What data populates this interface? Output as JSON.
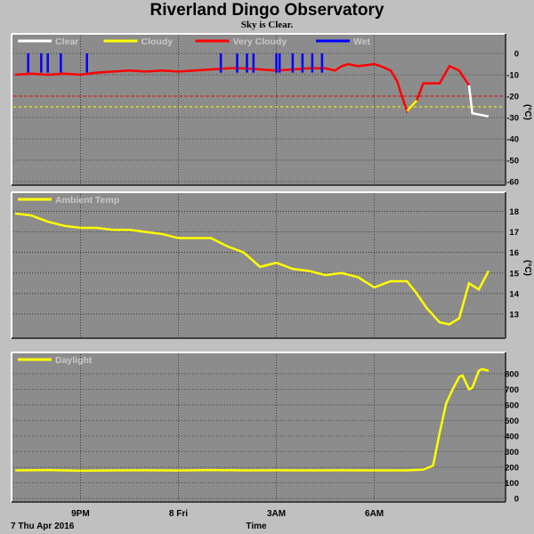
{
  "header": {
    "title": "Riverland Dingo Observatory",
    "subtitle": "Sky is Clear."
  },
  "colors": {
    "panel": "#8c8c8c",
    "grid": "#000000",
    "clear": "#ffffff",
    "cloudy": "#ffff00",
    "very_cloudy": "#ff0000",
    "wet": "#0000ff"
  },
  "x_axis": {
    "ticks": [
      "9PM",
      "8 Fri",
      "3AM",
      "6AM"
    ],
    "label": "Time",
    "date_label": "7 Thu Apr 2016"
  },
  "chart_data": [
    {
      "type": "line",
      "name": "sky-temperature",
      "unit": "(°C)",
      "ylim": [
        -60,
        5
      ],
      "yticks": [
        0,
        -10,
        -20,
        -30,
        -40,
        -50,
        -60
      ],
      "legend": [
        {
          "name": "Clear",
          "color": "#ffffff"
        },
        {
          "name": "Cloudy",
          "color": "#ffff00"
        },
        {
          "name": "Very Cloudy",
          "color": "#ff0000"
        },
        {
          "name": "Wet",
          "color": "#0000ff"
        }
      ],
      "thresholds": [
        {
          "value": -20,
          "color": "#ff0000"
        },
        {
          "value": -25,
          "color": "#ffff00"
        }
      ],
      "x_hours": [
        0,
        0.5,
        1.0,
        1.5,
        2.0,
        2.5,
        3.0,
        3.5,
        4.0,
        4.5,
        5.0,
        5.5,
        6.0,
        6.5,
        7.0,
        7.5,
        8.0,
        8.5,
        9.0,
        9.5,
        9.8,
        10.0,
        10.2,
        10.5,
        11.0,
        11.2,
        11.5,
        11.7,
        11.8,
        12.0,
        12.3,
        12.5,
        12.7,
        13.0,
        13.3,
        13.6,
        13.9,
        14.0,
        14.5
      ],
      "values": [
        -10,
        -9.5,
        -10,
        -9.5,
        -10,
        -9,
        -8.5,
        -8,
        -8.5,
        -8,
        -8.5,
        -8,
        -7.5,
        -7,
        -7,
        -7.5,
        -8,
        -7.5,
        -7,
        -7,
        -8,
        -6,
        -5,
        -6,
        -5,
        -6,
        -8,
        -13,
        -18,
        -27,
        -22,
        -14,
        -14,
        -14,
        -6,
        -8,
        -15,
        -28,
        -29.5
      ],
      "wet_spikes_hours": [
        0.4,
        0.8,
        1.0,
        1.4,
        2.2,
        6.3,
        6.8,
        7.1,
        7.3,
        8.0,
        8.1,
        8.5,
        8.8,
        9.1,
        9.4
      ],
      "clear_from_hour": 13.95
    },
    {
      "type": "line",
      "name": "ambient-temperature",
      "legend": [
        {
          "name": "Ambient Temp",
          "color": "#ffff00"
        }
      ],
      "unit": "(°C)",
      "ylim": [
        12,
        18.5
      ],
      "yticks": [
        13,
        14,
        15,
        16,
        17,
        18
      ],
      "x_hours": [
        0,
        0.5,
        1.0,
        1.5,
        2.0,
        2.5,
        3.0,
        3.5,
        4.0,
        4.5,
        5.0,
        5.5,
        6.0,
        6.5,
        7.0,
        7.5,
        8.0,
        8.5,
        9.0,
        9.5,
        10.0,
        10.5,
        11.0,
        11.5,
        12.0,
        12.3,
        12.6,
        13.0,
        13.3,
        13.6,
        13.9,
        14.2,
        14.5
      ],
      "values": [
        17.9,
        17.8,
        17.5,
        17.3,
        17.2,
        17.2,
        17.1,
        17.1,
        17.0,
        16.9,
        16.7,
        16.7,
        16.7,
        16.3,
        16.0,
        15.3,
        15.5,
        15.2,
        15.1,
        14.9,
        15.0,
        14.8,
        14.3,
        14.6,
        14.6,
        14.0,
        13.3,
        12.6,
        12.5,
        12.8,
        14.5,
        14.2,
        15.1
      ]
    },
    {
      "type": "line",
      "name": "daylight",
      "legend": [
        {
          "name": "Daylight",
          "color": "#ffff00"
        }
      ],
      "ylim": [
        0,
        880
      ],
      "yticks": [
        0,
        100,
        200,
        300,
        400,
        500,
        600,
        700,
        800
      ],
      "x_hours": [
        0,
        1,
        2,
        3,
        4,
        5,
        6,
        7,
        8,
        9,
        10,
        11,
        12,
        12.5,
        12.8,
        13.0,
        13.2,
        13.4,
        13.6,
        13.7,
        13.9,
        14.0,
        14.2,
        14.3,
        14.5
      ],
      "values": [
        180,
        182,
        178,
        180,
        181,
        179,
        182,
        180,
        181,
        180,
        181,
        180,
        180,
        185,
        210,
        420,
        610,
        700,
        780,
        790,
        700,
        710,
        820,
        830,
        820
      ]
    }
  ]
}
